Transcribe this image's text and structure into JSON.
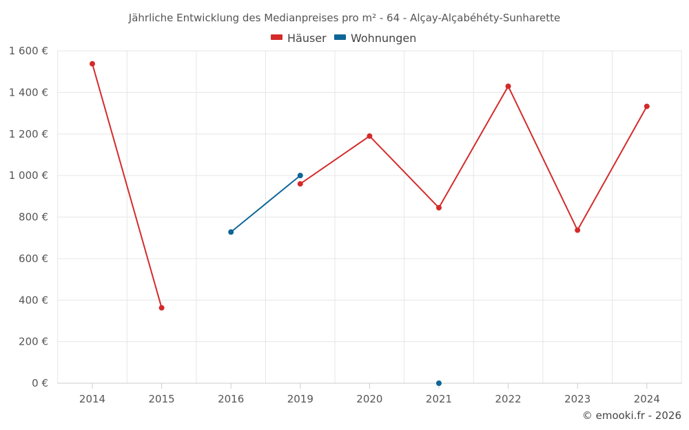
{
  "chart_data": {
    "type": "line",
    "title": "Jährliche Entwicklung des Medianpreises pro m² - 64 - Alçay-Alçabéhéty-Sunharette",
    "categories": [
      "2014",
      "2015",
      "2016",
      "2019",
      "2020",
      "2021",
      "2022",
      "2023",
      "2024"
    ],
    "series": [
      {
        "name": "Häuser",
        "color": "#d42a2a",
        "values": [
          1538,
          363,
          null,
          960,
          1190,
          845,
          1430,
          737,
          1333
        ]
      },
      {
        "name": "Wohnungen",
        "color": "#0e6597",
        "values": [
          null,
          null,
          728,
          1000,
          null,
          0,
          null,
          null,
          null
        ]
      }
    ],
    "y_ticks": [
      0,
      200,
      400,
      600,
      800,
      1000,
      1200,
      1400,
      1600
    ],
    "y_tick_labels": [
      "0 €",
      "200 €",
      "400 €",
      "600 €",
      "800 €",
      "1 000 €",
      "1 200 €",
      "1 400 €",
      "1 600 €"
    ],
    "ylim": [
      0,
      1600
    ],
    "xlabel": "",
    "ylabel": "",
    "grid": true,
    "legend_position": "top-center"
  },
  "credit": "© emooki.fr - 2026"
}
